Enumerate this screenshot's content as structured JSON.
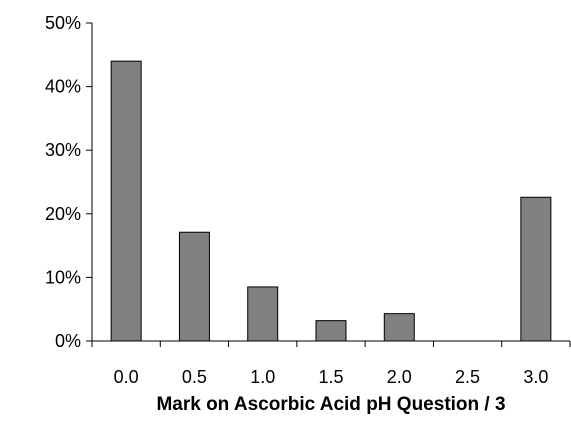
{
  "chart_data": {
    "type": "bar",
    "categories": [
      "0.0",
      "0.5",
      "1.0",
      "1.5",
      "2.0",
      "2.5",
      "3.0"
    ],
    "values": [
      44,
      17.1,
      8.5,
      3.2,
      4.3,
      0,
      22.6
    ],
    "title": "",
    "xlabel": "Mark on Ascorbic Acid pH Question / 3",
    "ylabel": "",
    "ylim": [
      0,
      50
    ],
    "yticks": [
      0,
      10,
      20,
      30,
      40,
      50
    ],
    "ytick_labels": [
      "0%",
      "10%",
      "20%",
      "30%",
      "40%",
      "50%"
    ],
    "grid": false,
    "legend": "none",
    "colors": {
      "bar_fill": "#808080",
      "bar_stroke": "#000000",
      "axis": "#000000"
    }
  }
}
